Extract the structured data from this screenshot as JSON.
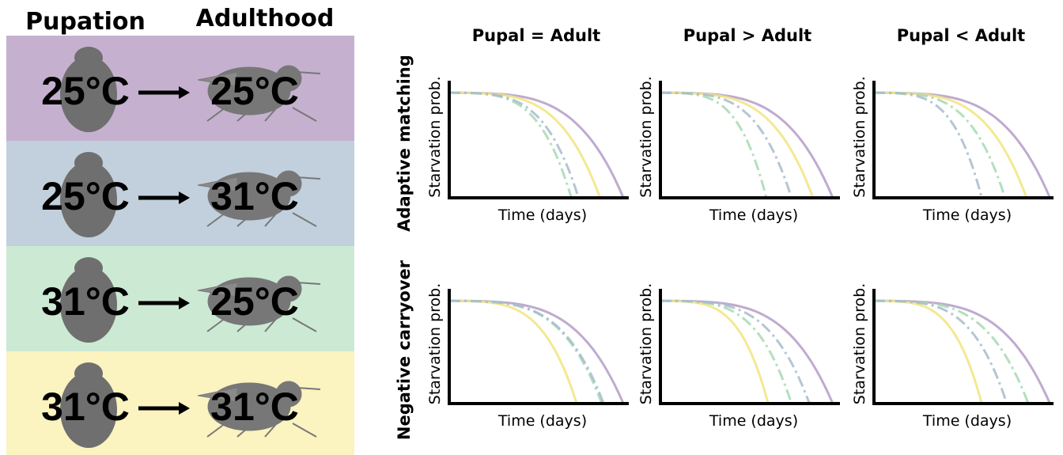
{
  "left": {
    "headers": [
      "Pupation",
      "Adulthood"
    ],
    "rows": [
      [
        "25°C",
        "25°C"
      ],
      [
        "25°C",
        "31°C"
      ],
      [
        "31°C",
        "25°C"
      ],
      [
        "31°C",
        "31°C"
      ]
    ]
  },
  "right": {
    "columns": [
      "Pupal = Adult",
      "Pupal > Adult",
      "Pupal < Adult"
    ],
    "rows": [
      "Adaptive matching",
      "Negative carryover"
    ],
    "y_label": "Starvation prob.",
    "x_label": "Time (days)"
  }
}
